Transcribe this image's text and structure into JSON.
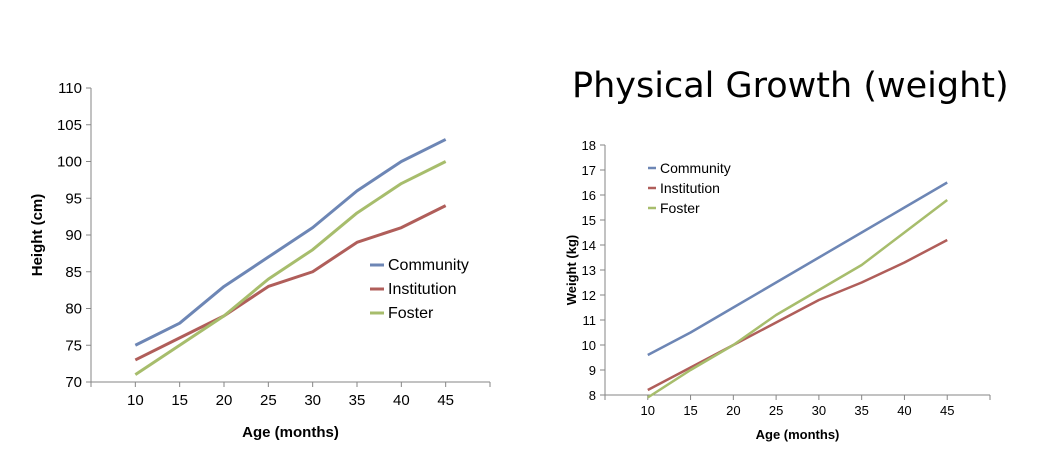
{
  "page_title": "Physical Growth (weight)",
  "chart_data": [
    {
      "type": "line",
      "title": "",
      "xlabel": "Age (months)",
      "ylabel": "Height (cm)",
      "x": [
        10,
        15,
        20,
        25,
        30,
        35,
        40,
        45
      ],
      "xticks": [
        "10",
        "15",
        "20",
        "25",
        "30",
        "35",
        "40",
        "45"
      ],
      "ylim": [
        70,
        110
      ],
      "yticks": [
        "70",
        "75",
        "80",
        "85",
        "90",
        "95",
        "100",
        "105",
        "110"
      ],
      "grid": false,
      "legend_position": "right",
      "series": [
        {
          "name": "Community",
          "color": "#6d86b5",
          "values": [
            75,
            78,
            83,
            87,
            91,
            96,
            100,
            103
          ]
        },
        {
          "name": "Institution",
          "color": "#b05e5a",
          "values": [
            73,
            76,
            79,
            83,
            85,
            89,
            91,
            94
          ]
        },
        {
          "name": "Foster",
          "color": "#a7bd6c",
          "values": [
            71,
            75,
            79,
            84,
            88,
            93,
            97,
            100
          ]
        }
      ]
    },
    {
      "type": "line",
      "title": "",
      "xlabel": "Age (months)",
      "ylabel": "Weight (kg)",
      "x": [
        10,
        15,
        20,
        25,
        30,
        35,
        40,
        45
      ],
      "xticks": [
        "10",
        "15",
        "20",
        "25",
        "30",
        "35",
        "40",
        "45"
      ],
      "ylim": [
        8,
        18
      ],
      "yticks": [
        "8",
        "9",
        "10",
        "11",
        "12",
        "13",
        "14",
        "15",
        "16",
        "17",
        "18"
      ],
      "grid": false,
      "legend_position": "top-left",
      "series": [
        {
          "name": "Community",
          "color": "#6d86b5",
          "values": [
            9.6,
            10.5,
            11.5,
            12.5,
            13.5,
            14.5,
            15.5,
            16.5
          ]
        },
        {
          "name": "Institution",
          "color": "#b05e5a",
          "values": [
            8.2,
            9.1,
            10.0,
            10.9,
            11.8,
            12.5,
            13.3,
            14.2
          ]
        },
        {
          "name": "Foster",
          "color": "#a7bd6c",
          "values": [
            7.9,
            9.0,
            10.0,
            11.2,
            12.2,
            13.2,
            14.5,
            15.8
          ]
        }
      ]
    }
  ]
}
